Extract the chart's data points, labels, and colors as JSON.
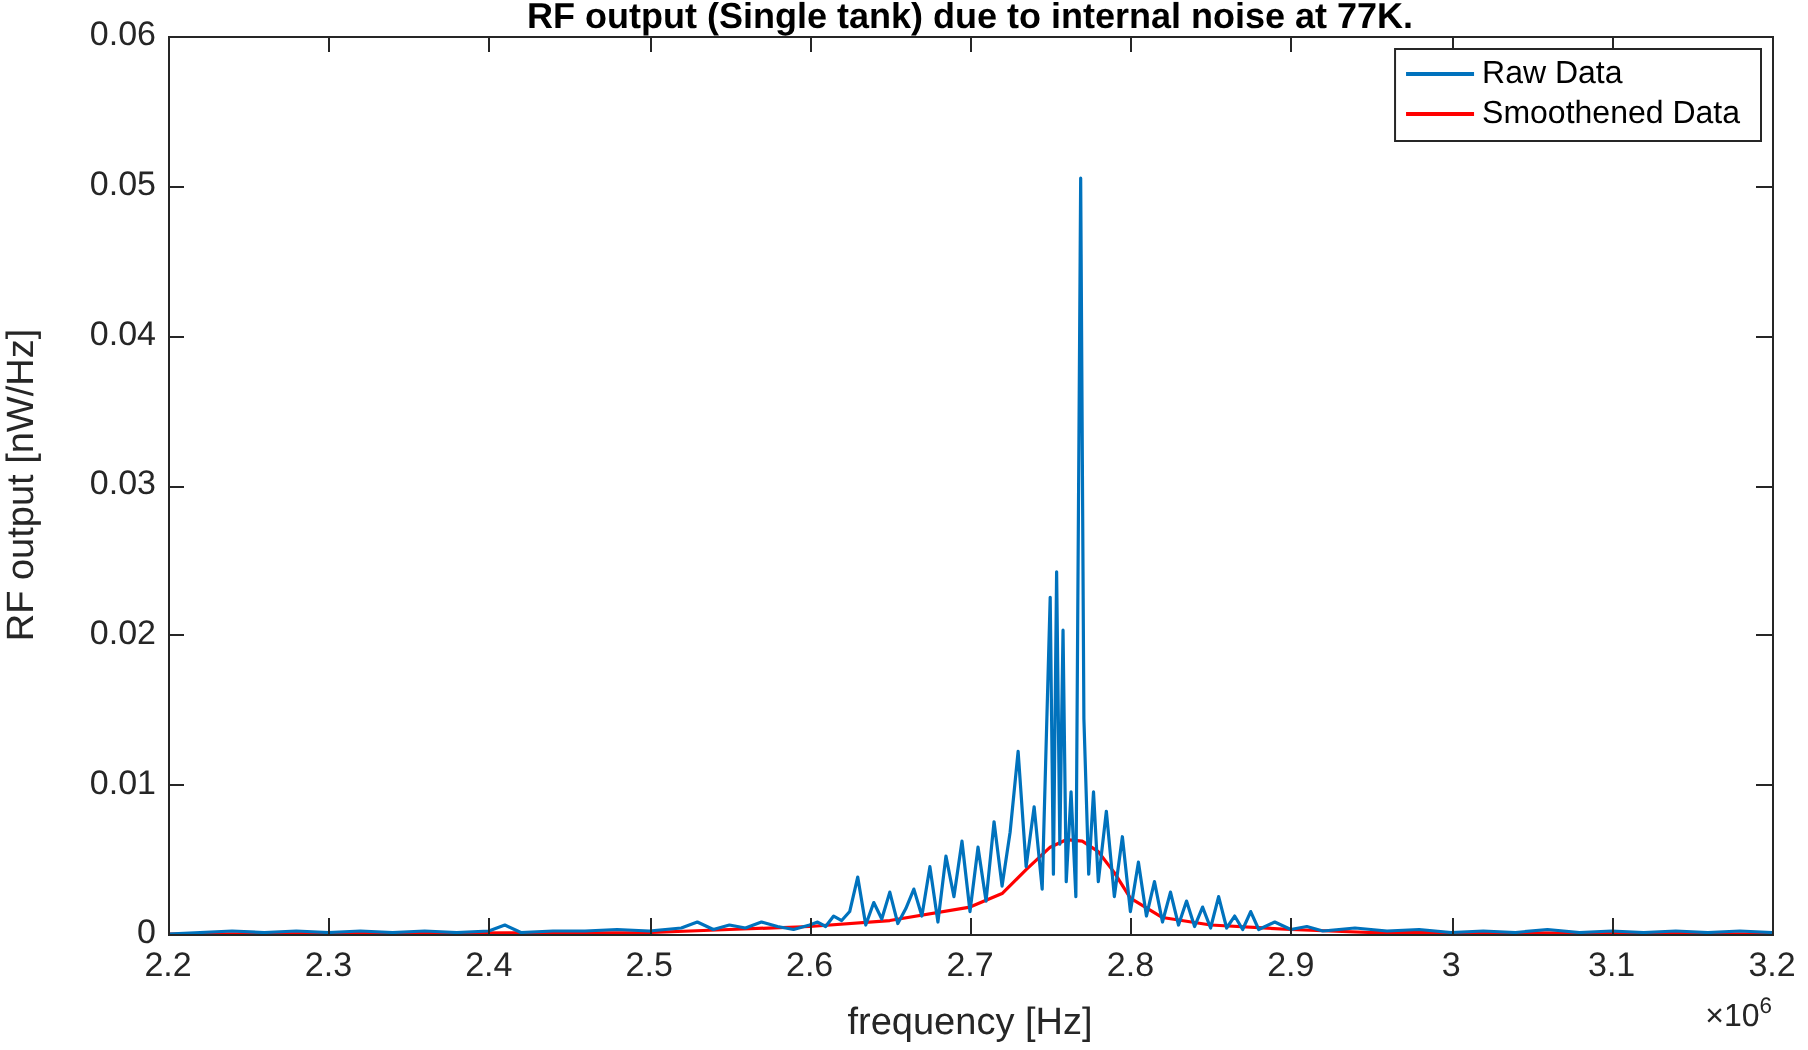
{
  "chart_data": {
    "type": "line",
    "title": "RF output (Single tank) due to internal noise at 77K.",
    "xlabel": "frequency [Hz]",
    "ylabel": "RF output [nW/Hz]",
    "annotations": [
      "×10$^{6}$"
    ],
    "xlim": [
      2.2,
      3.2
    ],
    "xticks": [
      2.2,
      2.3,
      2.4,
      2.5,
      2.6,
      2.7,
      2.8,
      2.9,
      3,
      3.1,
      3.2
    ],
    "ylim": [
      0,
      0.06
    ],
    "yticks": [
      0,
      0.01,
      0.02,
      0.03,
      0.04,
      0.05,
      0.06
    ],
    "grid": false,
    "legend": "top right",
    "marker": "none",
    "line_style": "solid",
    "series": [
      {
        "name": "Raw Data",
        "color": "#0072bd",
        "x": [
          2.2,
          2.22,
          2.24,
          2.26,
          2.28,
          2.3,
          2.32,
          2.34,
          2.36,
          2.38,
          2.4,
          2.41,
          2.42,
          2.44,
          2.46,
          2.48,
          2.5,
          2.52,
          2.53,
          2.54,
          2.55,
          2.56,
          2.57,
          2.58,
          2.59,
          2.6,
          2.605,
          2.61,
          2.615,
          2.62,
          2.625,
          2.63,
          2.635,
          2.64,
          2.645,
          2.65,
          2.655,
          2.66,
          2.665,
          2.67,
          2.675,
          2.68,
          2.685,
          2.69,
          2.695,
          2.7,
          2.705,
          2.71,
          2.715,
          2.72,
          2.725,
          2.73,
          2.735,
          2.74,
          2.745,
          2.75,
          2.752,
          2.754,
          2.756,
          2.758,
          2.76,
          2.763,
          2.766,
          2.769,
          2.771,
          2.774,
          2.777,
          2.78,
          2.785,
          2.79,
          2.795,
          2.8,
          2.805,
          2.81,
          2.815,
          2.82,
          2.825,
          2.83,
          2.835,
          2.84,
          2.845,
          2.85,
          2.855,
          2.86,
          2.865,
          2.87,
          2.875,
          2.88,
          2.89,
          2.9,
          2.91,
          2.92,
          2.94,
          2.96,
          2.98,
          3,
          3.02,
          3.04,
          3.06,
          3.08,
          3.1,
          3.12,
          3.14,
          3.16,
          3.18,
          3.2
        ],
        "values": [
          0,
          0.0001,
          0.0002,
          0.0001,
          0.0002,
          0.0001,
          0.0002,
          0.0001,
          0.0002,
          0.0001,
          0.0002,
          0.0006,
          0.0001,
          0.0002,
          0.0002,
          0.0003,
          0.0002,
          0.0004,
          0.0008,
          0.0003,
          0.0006,
          0.0004,
          0.0008,
          0.0005,
          0.0003,
          0.0006,
          0.0008,
          0.0005,
          0.0012,
          0.0009,
          0.0015,
          0.0038,
          0.0006,
          0.0021,
          0.001,
          0.0028,
          0.0007,
          0.0017,
          0.003,
          0.0012,
          0.0045,
          0.0008,
          0.0052,
          0.0025,
          0.0062,
          0.0015,
          0.0058,
          0.0022,
          0.0075,
          0.0032,
          0.0068,
          0.0122,
          0.0045,
          0.0085,
          0.003,
          0.0225,
          0.004,
          0.0242,
          0.006,
          0.0203,
          0.0035,
          0.0095,
          0.0025,
          0.0505,
          0.0144,
          0.004,
          0.0095,
          0.0035,
          0.0082,
          0.0025,
          0.0065,
          0.0015,
          0.0048,
          0.0012,
          0.0035,
          0.0008,
          0.0028,
          0.0006,
          0.0022,
          0.0005,
          0.0018,
          0.0004,
          0.0025,
          0.0004,
          0.0012,
          0.0003,
          0.0015,
          0.0003,
          0.0008,
          0.0003,
          0.0005,
          0.0002,
          0.0004,
          0.0002,
          0.0003,
          0.0001,
          0.0002,
          0.0001,
          0.0003,
          0.0001,
          0.0002,
          0.0001,
          0.0002,
          0.0001,
          0.0002,
          0.0001
        ]
      },
      {
        "name": "Smoothened Data",
        "color": "#ff0000",
        "x": [
          2.2,
          2.5,
          2.55,
          2.6,
          2.65,
          2.7,
          2.72,
          2.735,
          2.75,
          2.76,
          2.77,
          2.78,
          2.79,
          2.8,
          2.82,
          2.85,
          2.9,
          2.95,
          3,
          3.2
        ],
        "values": [
          0,
          0.0001,
          0.0003,
          0.0005,
          0.0009,
          0.0018,
          0.0027,
          0.0043,
          0.0058,
          0.0063,
          0.0062,
          0.0055,
          0.0041,
          0.0024,
          0.0011,
          0.0006,
          0.0003,
          0.0001,
          0.0001,
          0
        ]
      }
    ]
  }
}
